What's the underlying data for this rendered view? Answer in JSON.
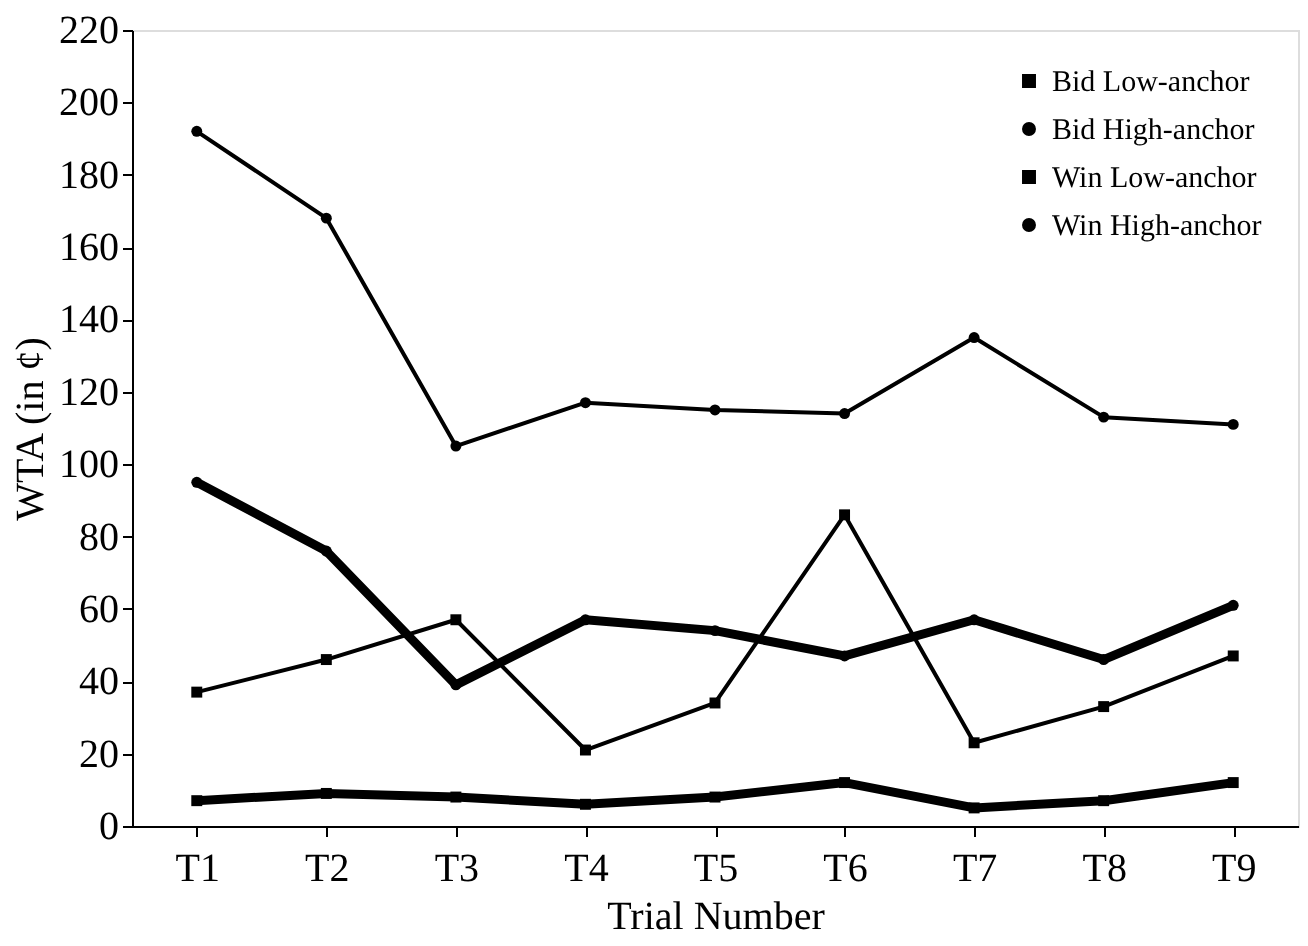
{
  "chart_data": {
    "type": "line",
    "xlabel": "Trial Number",
    "ylabel": "WTA (in ¢)",
    "categories": [
      "T1",
      "T2",
      "T3",
      "T4",
      "T5",
      "T6",
      "T7",
      "T8",
      "T9"
    ],
    "series": [
      {
        "name": "Bid Low-anchor",
        "color": "#000000",
        "marker": "square",
        "values": [
          37,
          46,
          57,
          21,
          34,
          86,
          23,
          33,
          47
        ]
      },
      {
        "name": "Bid High-anchor",
        "color": "#000000",
        "marker": "circle",
        "values": [
          192,
          168,
          105,
          117,
          115,
          114,
          135,
          113,
          111
        ]
      },
      {
        "name": "Win Low-anchor",
        "color": "#000000",
        "marker": "square",
        "values": [
          7,
          9,
          8,
          6,
          8,
          12,
          5,
          7,
          12
        ]
      },
      {
        "name": "Win High-anchor",
        "color": "#000000",
        "marker": "circle",
        "values": [
          95,
          76,
          39,
          57,
          54,
          47,
          57,
          46,
          61
        ]
      }
    ],
    "ylim": [
      0,
      220
    ],
    "yticks": [
      0,
      20,
      40,
      60,
      80,
      100,
      120,
      140,
      160,
      180,
      200,
      220
    ],
    "grid": false,
    "legend": "top right",
    "line_style": "solid"
  }
}
